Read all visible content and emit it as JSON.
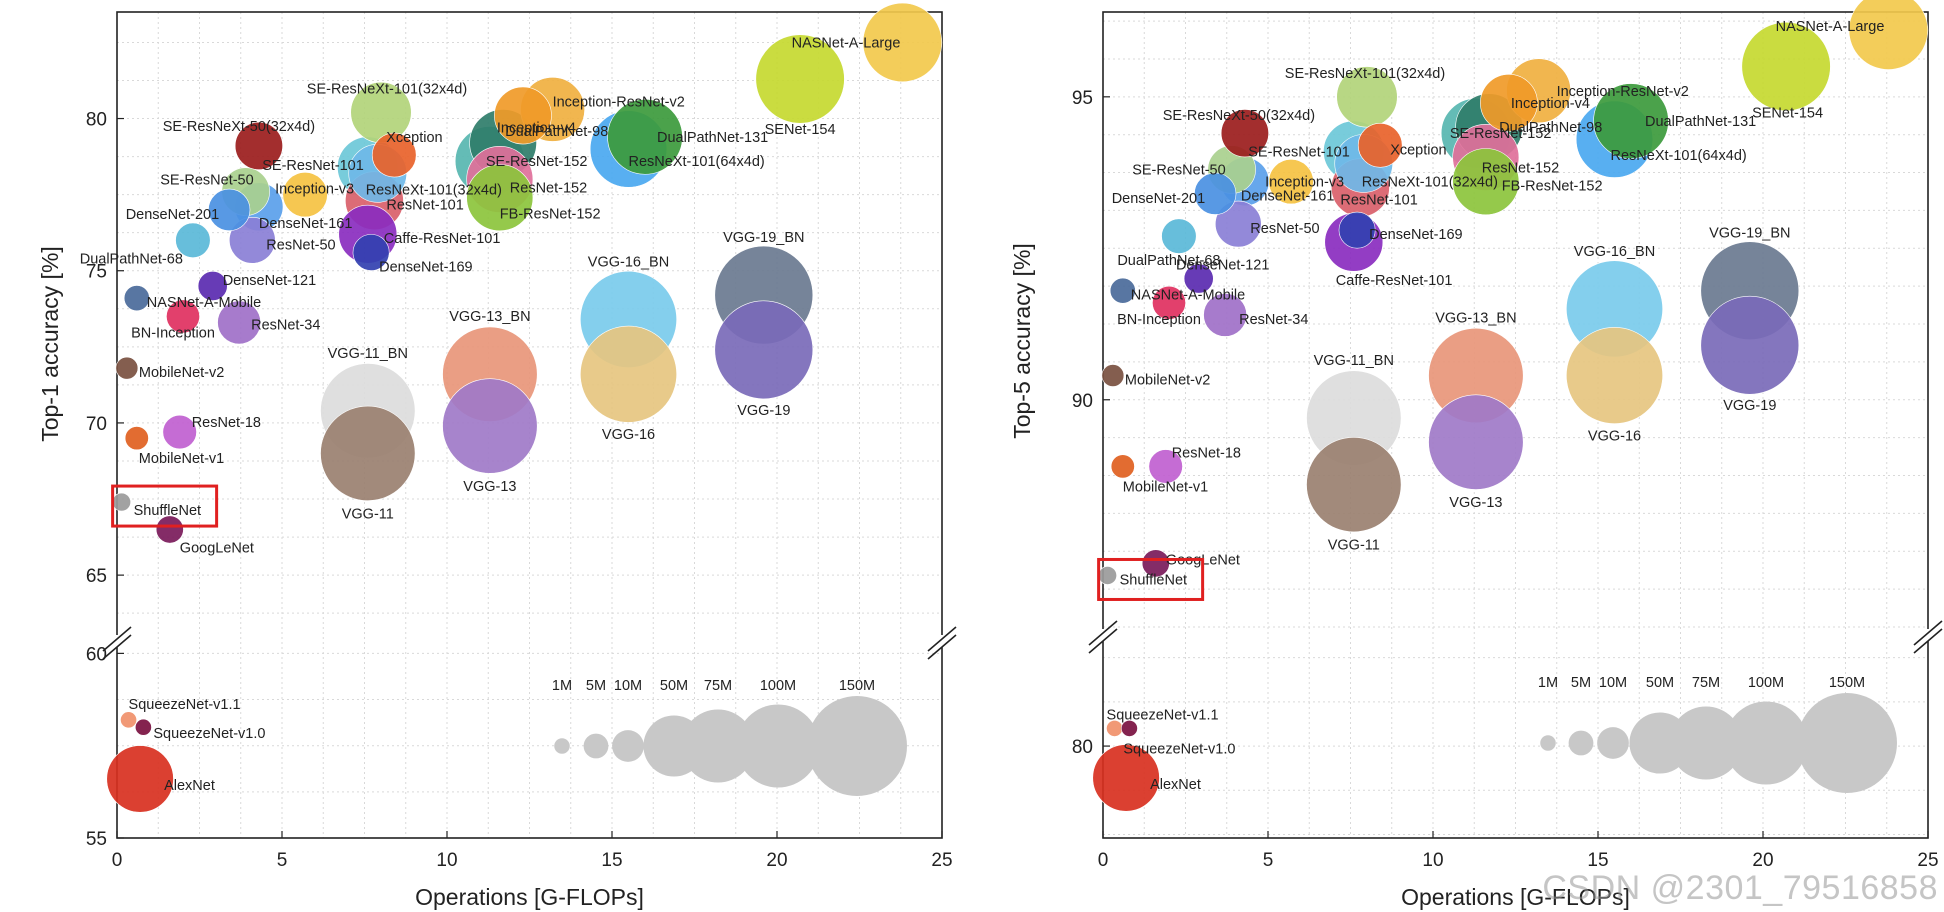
{
  "watermark": "CSDN @2301_79516858",
  "legend": {
    "labels": [
      "1M",
      "5M",
      "10M",
      "50M",
      "75M",
      "100M",
      "150M"
    ],
    "params_m": [
      1,
      5,
      10,
      50,
      75,
      100,
      150
    ],
    "color": "#c8c8c8"
  },
  "chart_data": [
    {
      "type": "scatter",
      "title": "",
      "xlabel": "Operations [G-FLOPs]",
      "ylabel": "Top-1 accuracy [%]",
      "xlim": [
        0,
        25
      ],
      "x_ticks": [
        "0",
        "5",
        "10",
        "15",
        "20",
        "25"
      ],
      "y_ticks_upper": [
        "65",
        "70",
        "75",
        "80"
      ],
      "y_ticks_lower": [
        "55",
        "60"
      ],
      "y_axis_break": true,
      "highlighted": "ShuffleNet",
      "points": [
        {
          "name": "NASNet-A-Large",
          "gflops": 23.8,
          "acc": 82.5,
          "params_m": 88.9,
          "color": "#f2c94c"
        },
        {
          "name": "SENet-154",
          "gflops": 20.7,
          "acc": 81.3,
          "params_m": 115.1,
          "color": "#c5d930"
        },
        {
          "name": "SE-ResNeXt-101(32x4d)",
          "gflops": 8.0,
          "acc": 80.2,
          "params_m": 49.0,
          "color": "#b2d47a"
        },
        {
          "name": "Inception-ResNet-v2",
          "gflops": 13.2,
          "acc": 80.3,
          "params_m": 55.8,
          "color": "#f0b040"
        },
        {
          "name": "Inception-v4",
          "gflops": 12.3,
          "acc": 80.1,
          "params_m": 42.7,
          "color": "#f09a28"
        },
        {
          "name": "SE-ResNeXt-50(32x4d)",
          "gflops": 4.3,
          "acc": 79.1,
          "params_m": 27.6,
          "color": "#9b1c1c"
        },
        {
          "name": "Xception",
          "gflops": 8.4,
          "acc": 78.8,
          "params_m": 22.9,
          "color": "#e8622a"
        },
        {
          "name": "DualPathNet-131",
          "gflops": 16.0,
          "acc": 79.4,
          "params_m": 79.3,
          "color": "#3c9a3c"
        },
        {
          "name": "DualPathNet-98",
          "gflops": 11.7,
          "acc": 79.2,
          "params_m": 61.6,
          "color": "#2f7d6a"
        },
        {
          "name": "ResNeXt-101(64x4d)",
          "gflops": 15.5,
          "acc": 79.0,
          "params_m": 83.5,
          "color": "#4aa8f0"
        },
        {
          "name": "SE-ResNet-152",
          "gflops": 11.3,
          "acc": 78.6,
          "params_m": 66.8,
          "color": "#57b6b0"
        },
        {
          "name": "SE-ResNet-101",
          "gflops": 7.6,
          "acc": 78.4,
          "params_m": 49.3,
          "color": "#6cc8d8"
        },
        {
          "name": "ResNeXt-101(32x4d)",
          "gflops": 7.9,
          "acc": 78.2,
          "params_m": 44.2,
          "color": "#6fb8e8"
        },
        {
          "name": "ResNet-152",
          "gflops": 11.6,
          "acc": 78.0,
          "params_m": 60.2,
          "color": "#e0709a"
        },
        {
          "name": "FB-ResNet-152",
          "gflops": 11.6,
          "acc": 77.4,
          "params_m": 60.2,
          "color": "#8cc43c"
        },
        {
          "name": "SE-ResNet-50",
          "gflops": 3.9,
          "acc": 77.6,
          "params_m": 28.1,
          "color": "#a9d08e"
        },
        {
          "name": "Inception-v3",
          "gflops": 5.7,
          "acc": 77.5,
          "params_m": 23.8,
          "color": "#f5c242"
        },
        {
          "name": "ResNet-101",
          "gflops": 7.8,
          "acc": 77.3,
          "params_m": 44.5,
          "color": "#d9606a"
        },
        {
          "name": "DenseNet-201",
          "gflops": 3.4,
          "acc": 77.0,
          "params_m": 20.0,
          "color": "#4a90e2"
        },
        {
          "name": "DenseNet-161",
          "gflops": 4.3,
          "acc": 77.1,
          "params_m": 28.7,
          "color": "#5aa0ea"
        },
        {
          "name": "Caffe-ResNet-101",
          "gflops": 7.6,
          "acc": 76.2,
          "params_m": 44.5,
          "color": "#8a2cbf"
        },
        {
          "name": "ResNet-50",
          "gflops": 4.1,
          "acc": 76.0,
          "params_m": 25.6,
          "color": "#8a7fd6"
        },
        {
          "name": "DualPathNet-68",
          "gflops": 2.3,
          "acc": 76.0,
          "params_m": 12.6,
          "color": "#5ab8d8"
        },
        {
          "name": "DenseNet-169",
          "gflops": 7.7,
          "acc": 75.6,
          "params_m": 14.1,
          "color": "#3240b0"
        },
        {
          "name": "DenseNet-121",
          "gflops": 2.9,
          "acc": 74.5,
          "params_m": 8.0,
          "color": "#5a2ab0"
        },
        {
          "name": "NASNet-A-Mobile",
          "gflops": 0.6,
          "acc": 74.1,
          "params_m": 5.3,
          "color": "#4a6a9a"
        },
        {
          "name": "BN-Inception",
          "gflops": 2.0,
          "acc": 73.5,
          "params_m": 11.3,
          "color": "#e03060"
        },
        {
          "name": "ResNet-34",
          "gflops": 3.7,
          "acc": 73.3,
          "params_m": 21.8,
          "color": "#a070c8"
        },
        {
          "name": "MobileNet-v2",
          "gflops": 0.3,
          "acc": 71.8,
          "params_m": 3.5,
          "color": "#7a5040"
        },
        {
          "name": "ResNet-18",
          "gflops": 1.9,
          "acc": 69.7,
          "params_m": 11.7,
          "color": "#c060d0"
        },
        {
          "name": "MobileNet-v1",
          "gflops": 0.6,
          "acc": 69.5,
          "params_m": 4.2,
          "color": "#e06020"
        },
        {
          "name": "ShuffleNet",
          "gflops": 0.14,
          "acc": 67.4,
          "params_m": 1.8,
          "color": "#9a9a9a"
        },
        {
          "name": "GoogLeNet",
          "gflops": 1.6,
          "acc": 66.5,
          "params_m": 6.6,
          "color": "#7a1a5a"
        },
        {
          "name": "VGG-19_BN",
          "gflops": 19.6,
          "acc": 74.2,
          "params_m": 143.7,
          "color": "#6a7a90"
        },
        {
          "name": "VGG-19",
          "gflops": 19.6,
          "acc": 72.4,
          "params_m": 143.7,
          "color": "#7a6ab8"
        },
        {
          "name": "VGG-16_BN",
          "gflops": 15.5,
          "acc": 73.4,
          "params_m": 138.4,
          "color": "#7acbeb"
        },
        {
          "name": "VGG-16",
          "gflops": 15.5,
          "acc": 71.6,
          "params_m": 138.4,
          "color": "#e6c580"
        },
        {
          "name": "VGG-13_BN",
          "gflops": 11.3,
          "acc": 71.6,
          "params_m": 133.1,
          "color": "#e8967a"
        },
        {
          "name": "VGG-13",
          "gflops": 11.3,
          "acc": 69.9,
          "params_m": 133.1,
          "color": "#a07ac8"
        },
        {
          "name": "VGG-11_BN",
          "gflops": 7.6,
          "acc": 70.4,
          "params_m": 132.9,
          "color": "#dcdcdc"
        },
        {
          "name": "VGG-11",
          "gflops": 7.6,
          "acc": 69.0,
          "params_m": 132.9,
          "color": "#9a8070"
        },
        {
          "name": "SqueezeNet-v1.1",
          "gflops": 0.35,
          "acc": 58.2,
          "params_m": 1.2,
          "color": "#f0906a"
        },
        {
          "name": "SqueezeNet-v1.0",
          "gflops": 0.8,
          "acc": 58.0,
          "params_m": 1.2,
          "color": "#7a1040"
        },
        {
          "name": "AlexNet",
          "gflops": 0.7,
          "acc": 56.6,
          "params_m": 61.1,
          "color": "#d83020"
        }
      ]
    },
    {
      "type": "scatter",
      "title": "",
      "xlabel": "Operations [G-FLOPs]",
      "ylabel": "Top-5 accuracy [%]",
      "xlim": [
        0,
        25
      ],
      "x_ticks": [
        "0",
        "5",
        "10",
        "15",
        "20",
        "25"
      ],
      "y_ticks_upper": [
        "90",
        "95"
      ],
      "y_ticks_lower": [
        "80"
      ],
      "y_axis_break": true,
      "highlighted": "ShuffleNet",
      "points": [
        {
          "name": "NASNet-A-Large",
          "gflops": 23.8,
          "acc": 96.1,
          "params_m": 88.9,
          "color": "#f2c94c"
        },
        {
          "name": "SENet-154",
          "gflops": 20.7,
          "acc": 95.5,
          "params_m": 115.1,
          "color": "#c5d930"
        },
        {
          "name": "SE-ResNeXt-101(32x4d)",
          "gflops": 8.0,
          "acc": 95.0,
          "params_m": 49.0,
          "color": "#b2d47a"
        },
        {
          "name": "Inception-ResNet-v2",
          "gflops": 13.2,
          "acc": 95.1,
          "params_m": 55.8,
          "color": "#f0b040"
        },
        {
          "name": "Inception-v4",
          "gflops": 12.3,
          "acc": 94.9,
          "params_m": 42.7,
          "color": "#f09a28"
        },
        {
          "name": "SE-ResNeXt-50(32x4d)",
          "gflops": 4.3,
          "acc": 94.4,
          "params_m": 27.6,
          "color": "#9b1c1c"
        },
        {
          "name": "Xception",
          "gflops": 8.4,
          "acc": 94.2,
          "params_m": 22.9,
          "color": "#e8622a"
        },
        {
          "name": "DualPathNet-131",
          "gflops": 16.0,
          "acc": 94.6,
          "params_m": 79.3,
          "color": "#3c9a3c"
        },
        {
          "name": "DualPathNet-98",
          "gflops": 11.7,
          "acc": 94.5,
          "params_m": 61.6,
          "color": "#2f7d6a"
        },
        {
          "name": "ResNeXt-101(64x4d)",
          "gflops": 15.5,
          "acc": 94.3,
          "params_m": 83.5,
          "color": "#4aa8f0"
        },
        {
          "name": "SE-ResNet-152",
          "gflops": 11.3,
          "acc": 94.4,
          "params_m": 66.8,
          "color": "#57b6b0"
        },
        {
          "name": "SE-ResNet-101",
          "gflops": 7.6,
          "acc": 94.1,
          "params_m": 49.3,
          "color": "#6cc8d8"
        },
        {
          "name": "ResNeXt-101(32x4d)",
          "gflops": 7.9,
          "acc": 93.9,
          "params_m": 44.2,
          "color": "#6fb8e8"
        },
        {
          "name": "ResNet-152",
          "gflops": 11.6,
          "acc": 94.0,
          "params_m": 60.2,
          "color": "#e0709a"
        },
        {
          "name": "FB-ResNet-152",
          "gflops": 11.6,
          "acc": 93.6,
          "params_m": 60.2,
          "color": "#8cc43c"
        },
        {
          "name": "SE-ResNet-50",
          "gflops": 3.9,
          "acc": 93.8,
          "params_m": 28.1,
          "color": "#a9d08e"
        },
        {
          "name": "Inception-v3",
          "gflops": 5.7,
          "acc": 93.6,
          "params_m": 23.8,
          "color": "#f5c242"
        },
        {
          "name": "ResNet-101",
          "gflops": 7.8,
          "acc": 93.5,
          "params_m": 44.5,
          "color": "#d9606a"
        },
        {
          "name": "DenseNet-201",
          "gflops": 3.4,
          "acc": 93.4,
          "params_m": 20.0,
          "color": "#4a90e2"
        },
        {
          "name": "DenseNet-161",
          "gflops": 4.3,
          "acc": 93.6,
          "params_m": 28.7,
          "color": "#5aa0ea"
        },
        {
          "name": "ResNet-50",
          "gflops": 4.1,
          "acc": 92.9,
          "params_m": 25.6,
          "color": "#8a7fd6"
        },
        {
          "name": "Caffe-ResNet-101",
          "gflops": 7.6,
          "acc": 92.6,
          "params_m": 44.5,
          "color": "#8a2cbf"
        },
        {
          "name": "DenseNet-169",
          "gflops": 7.7,
          "acc": 92.8,
          "params_m": 14.1,
          "color": "#3240b0"
        },
        {
          "name": "DualPathNet-68",
          "gflops": 2.3,
          "acc": 92.7,
          "params_m": 12.6,
          "color": "#5ab8d8"
        },
        {
          "name": "DenseNet-121",
          "gflops": 2.9,
          "acc": 92.0,
          "params_m": 8.0,
          "color": "#5a2ab0"
        },
        {
          "name": "NASNet-A-Mobile",
          "gflops": 0.6,
          "acc": 91.8,
          "params_m": 5.3,
          "color": "#4a6a9a"
        },
        {
          "name": "BN-Inception",
          "gflops": 2.0,
          "acc": 91.6,
          "params_m": 11.3,
          "color": "#e03060"
        },
        {
          "name": "ResNet-34",
          "gflops": 3.7,
          "acc": 91.4,
          "params_m": 21.8,
          "color": "#a070c8"
        },
        {
          "name": "MobileNet-v2",
          "gflops": 0.3,
          "acc": 90.4,
          "params_m": 3.5,
          "color": "#7a5040"
        },
        {
          "name": "ResNet-18",
          "gflops": 1.9,
          "acc": 88.9,
          "params_m": 11.7,
          "color": "#c060d0"
        },
        {
          "name": "MobileNet-v1",
          "gflops": 0.6,
          "acc": 88.9,
          "params_m": 4.2,
          "color": "#e06020"
        },
        {
          "name": "GoogLeNet",
          "gflops": 1.6,
          "acc": 87.3,
          "params_m": 6.6,
          "color": "#7a1a5a"
        },
        {
          "name": "ShuffleNet",
          "gflops": 0.14,
          "acc": 87.1,
          "params_m": 1.8,
          "color": "#9a9a9a"
        },
        {
          "name": "VGG-19_BN",
          "gflops": 19.6,
          "acc": 91.8,
          "params_m": 143.7,
          "color": "#6a7a90"
        },
        {
          "name": "VGG-19",
          "gflops": 19.6,
          "acc": 90.9,
          "params_m": 143.7,
          "color": "#7a6ab8"
        },
        {
          "name": "VGG-16_BN",
          "gflops": 15.5,
          "acc": 91.5,
          "params_m": 138.4,
          "color": "#7acbeb"
        },
        {
          "name": "VGG-16",
          "gflops": 15.5,
          "acc": 90.4,
          "params_m": 138.4,
          "color": "#e6c580"
        },
        {
          "name": "VGG-13_BN",
          "gflops": 11.3,
          "acc": 90.4,
          "params_m": 133.1,
          "color": "#e8967a"
        },
        {
          "name": "VGG-13",
          "gflops": 11.3,
          "acc": 89.3,
          "params_m": 133.1,
          "color": "#a07ac8"
        },
        {
          "name": "VGG-11_BN",
          "gflops": 7.6,
          "acc": 89.7,
          "params_m": 132.9,
          "color": "#dcdcdc"
        },
        {
          "name": "VGG-11",
          "gflops": 7.6,
          "acc": 88.6,
          "params_m": 132.9,
          "color": "#9a8070"
        },
        {
          "name": "SqueezeNet-v1.1",
          "gflops": 0.35,
          "acc": 80.5,
          "params_m": 1.2,
          "color": "#f0906a"
        },
        {
          "name": "SqueezeNet-v1.0",
          "gflops": 0.8,
          "acc": 80.5,
          "params_m": 1.2,
          "color": "#7a1040"
        },
        {
          "name": "AlexNet",
          "gflops": 0.7,
          "acc": 79.1,
          "params_m": 61.1,
          "color": "#d83020"
        }
      ]
    }
  ]
}
